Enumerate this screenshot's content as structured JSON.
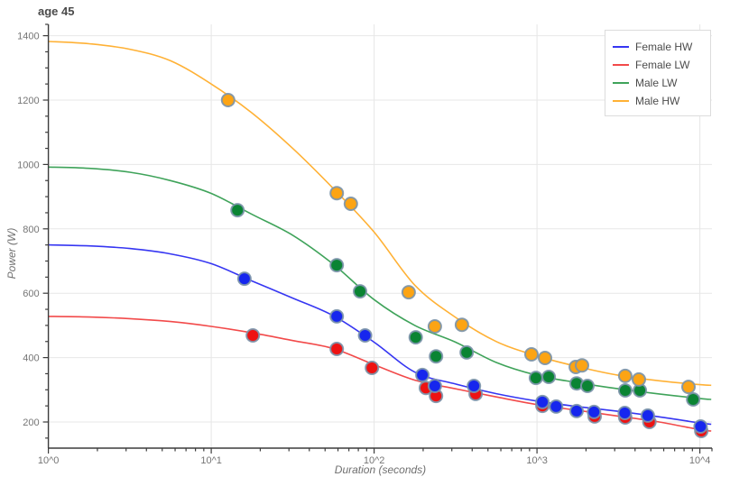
{
  "chart_data": {
    "type": "scatter",
    "title": "age 45",
    "xlabel": "Duration (seconds)",
    "ylabel": "Power (W)",
    "x_axis": {
      "scale": "log",
      "tick_exponents": [
        0,
        1,
        2,
        3,
        4
      ],
      "tick_labels": [
        "10^0",
        "10^1",
        "10^2",
        "10^3",
        "10^4"
      ],
      "range_log10": [
        0,
        4.07
      ],
      "minor_ticks": "mantissas 2-9 each decade"
    },
    "y_axis": {
      "tick_values": [
        200,
        400,
        600,
        800,
        1000,
        1200,
        1400
      ],
      "minor_step": 50,
      "minor_from": 150,
      "minor_to": 1400,
      "range": [
        115,
        1435
      ],
      "grid": true
    },
    "legend": {
      "position": "top-right",
      "entries": [
        "Female HW",
        "Female LW",
        "Male LW",
        "Male HW"
      ]
    },
    "colors": {
      "grid": "#e7e7e7",
      "axis": "#3c3c3c",
      "tick_label": "#757575",
      "marker_outline": "#7b93aa"
    },
    "draw_order": [
      1,
      0,
      2,
      3
    ],
    "series": [
      {
        "name": "Female HW",
        "line_color": "#3636f2",
        "marker_color": "#1626ee",
        "points_t_watts": [
          [
            16,
            645
          ],
          [
            59,
            528
          ],
          [
            88,
            469
          ],
          [
            198,
            346
          ],
          [
            236,
            312
          ],
          [
            410,
            312
          ],
          [
            1080,
            262
          ],
          [
            1310,
            248
          ],
          [
            1750,
            234
          ],
          [
            2240,
            231
          ],
          [
            3460,
            228
          ],
          [
            4790,
            220
          ],
          [
            10100,
            186
          ]
        ],
        "curve_log10t_watts": [
          [
            0,
            750
          ],
          [
            0.25,
            747
          ],
          [
            0.5,
            739
          ],
          [
            0.75,
            722
          ],
          [
            1.0,
            692
          ],
          [
            1.25,
            638
          ],
          [
            1.5,
            585
          ],
          [
            1.75,
            530
          ],
          [
            2.0,
            448
          ],
          [
            2.25,
            355
          ],
          [
            2.5,
            318
          ],
          [
            2.75,
            288
          ],
          [
            3.0,
            265
          ],
          [
            3.25,
            248
          ],
          [
            3.5,
            233
          ],
          [
            3.75,
            216
          ],
          [
            4.0,
            197
          ],
          [
            4.07,
            193
          ]
        ]
      },
      {
        "name": "Female LW",
        "line_color": "#f24a4a",
        "marker_color": "#ee1212",
        "points_t_watts": [
          [
            18,
            469
          ],
          [
            59,
            427
          ],
          [
            97,
            368
          ],
          [
            208,
            306
          ],
          [
            240,
            281
          ],
          [
            420,
            287
          ],
          [
            1080,
            250
          ],
          [
            2260,
            217
          ],
          [
            3480,
            214
          ],
          [
            4900,
            200
          ],
          [
            10200,
            172
          ]
        ],
        "curve_log10t_watts": [
          [
            0,
            528
          ],
          [
            0.25,
            526
          ],
          [
            0.5,
            521
          ],
          [
            0.75,
            512
          ],
          [
            1.0,
            497
          ],
          [
            1.25,
            477
          ],
          [
            1.5,
            453
          ],
          [
            1.75,
            428
          ],
          [
            2.0,
            378
          ],
          [
            2.25,
            330
          ],
          [
            2.5,
            303
          ],
          [
            2.75,
            278
          ],
          [
            3.0,
            254
          ],
          [
            3.25,
            236
          ],
          [
            3.5,
            218
          ],
          [
            3.75,
            200
          ],
          [
            4.0,
            176
          ],
          [
            4.07,
            172
          ]
        ]
      },
      {
        "name": "Male LW",
        "line_color": "#3fa35a",
        "marker_color": "#0a8433",
        "points_t_watts": [
          [
            14.5,
            858
          ],
          [
            59,
            687
          ],
          [
            82,
            606
          ],
          [
            180,
            463
          ],
          [
            240,
            404
          ],
          [
            370,
            416
          ],
          [
            985,
            337
          ],
          [
            1180,
            340
          ],
          [
            1750,
            320
          ],
          [
            2040,
            312
          ],
          [
            3480,
            298
          ],
          [
            4280,
            298
          ],
          [
            9100,
            270
          ]
        ],
        "curve_log10t_watts": [
          [
            0,
            992
          ],
          [
            0.25,
            988
          ],
          [
            0.5,
            976
          ],
          [
            0.75,
            950
          ],
          [
            1.0,
            910
          ],
          [
            1.25,
            845
          ],
          [
            1.5,
            780
          ],
          [
            1.75,
            690
          ],
          [
            2.0,
            580
          ],
          [
            2.25,
            500
          ],
          [
            2.5,
            448
          ],
          [
            2.75,
            385
          ],
          [
            3.0,
            345
          ],
          [
            3.25,
            322
          ],
          [
            3.5,
            303
          ],
          [
            3.75,
            287
          ],
          [
            4.0,
            273
          ],
          [
            4.07,
            270
          ]
        ]
      },
      {
        "name": "Male HW",
        "line_color": "#ffb135",
        "marker_color": "#fca414",
        "points_t_watts": [
          [
            12.7,
            1200
          ],
          [
            59,
            911
          ],
          [
            72,
            878
          ],
          [
            163,
            603
          ],
          [
            236,
            497
          ],
          [
            346,
            502
          ],
          [
            925,
            410
          ],
          [
            1120,
            399
          ],
          [
            1730,
            371
          ],
          [
            1890,
            376
          ],
          [
            3480,
            343
          ],
          [
            4220,
            332
          ],
          [
            8510,
            309
          ]
        ],
        "curve_log10t_watts": [
          [
            0,
            1382
          ],
          [
            0.25,
            1375
          ],
          [
            0.5,
            1358
          ],
          [
            0.75,
            1322
          ],
          [
            1.0,
            1250
          ],
          [
            1.25,
            1160
          ],
          [
            1.5,
            1050
          ],
          [
            1.75,
            925
          ],
          [
            2.0,
            790
          ],
          [
            2.25,
            625
          ],
          [
            2.5,
            525
          ],
          [
            2.75,
            450
          ],
          [
            3.0,
            405
          ],
          [
            3.25,
            372
          ],
          [
            3.5,
            345
          ],
          [
            3.75,
            328
          ],
          [
            4.0,
            316
          ],
          [
            4.07,
            314
          ]
        ]
      }
    ]
  }
}
